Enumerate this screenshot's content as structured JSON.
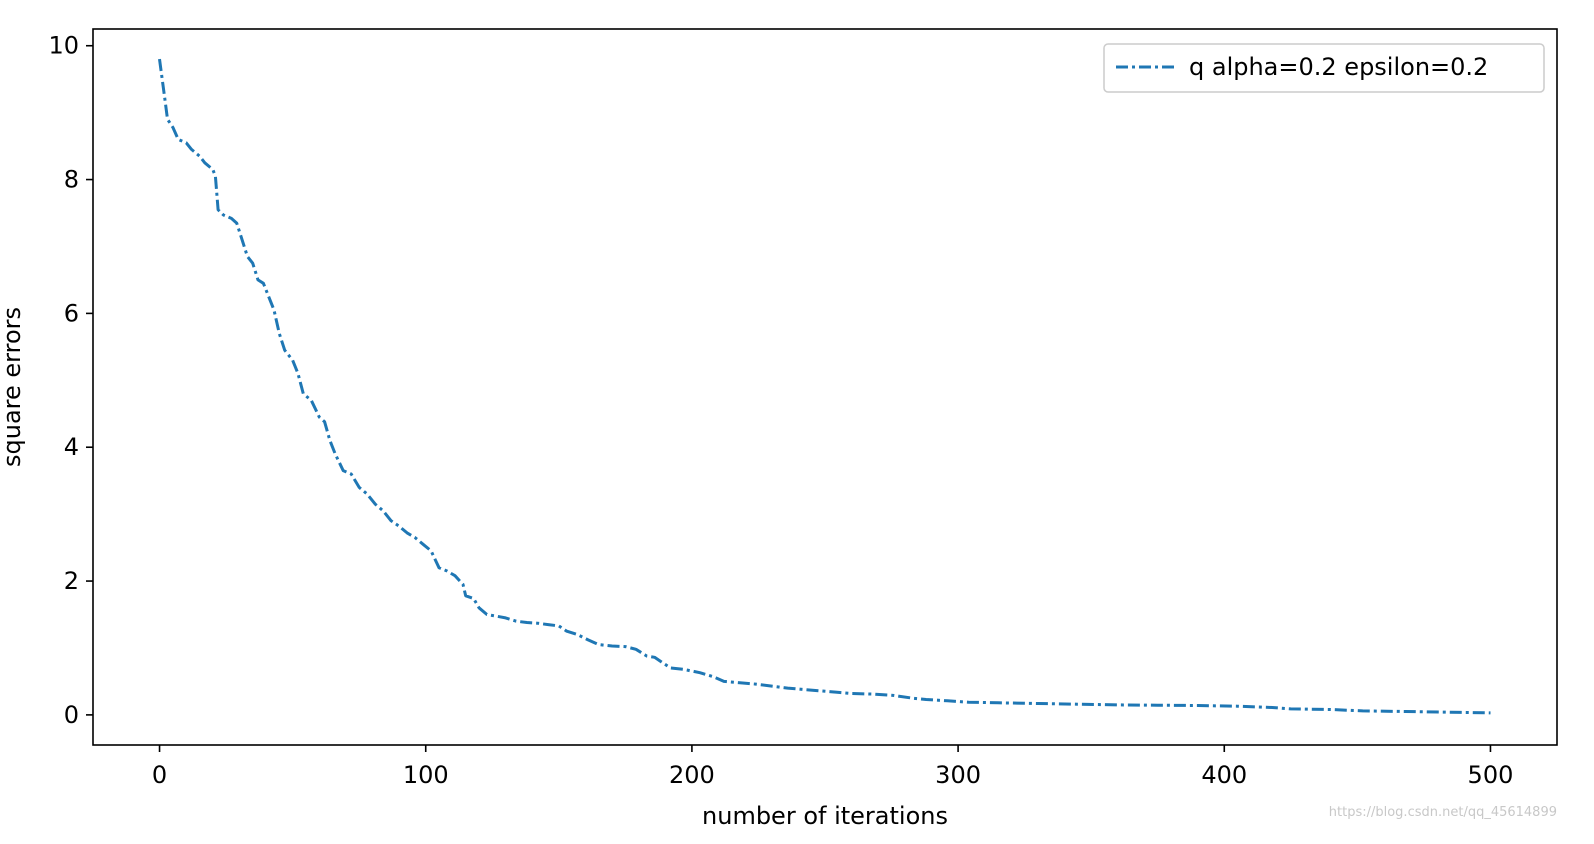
{
  "chart_data": {
    "type": "line",
    "title": "",
    "xlabel": "number of iterations",
    "ylabel": "square errors",
    "xlim": [
      -25,
      525
    ],
    "ylim": [
      -0.45,
      10.25
    ],
    "xticks": [
      0,
      100,
      200,
      300,
      400,
      500
    ],
    "xtick_labels": [
      "0",
      "100",
      "200",
      "300",
      "400",
      "500"
    ],
    "yticks": [
      0,
      2,
      4,
      6,
      8,
      10
    ],
    "ytick_labels": [
      "0",
      "2",
      "4",
      "6",
      "8",
      "10"
    ],
    "grid": false,
    "legend_position": "top-right",
    "series": [
      {
        "name": "q alpha=0.2 epsilon=0.2",
        "color": "#1f77b4",
        "line_style": "dash-dot",
        "points": [
          [
            0,
            9.8
          ],
          [
            2,
            9.2
          ],
          [
            3,
            8.9
          ],
          [
            5,
            8.78
          ],
          [
            7,
            8.6
          ],
          [
            10,
            8.55
          ],
          [
            12,
            8.45
          ],
          [
            15,
            8.35
          ],
          [
            17,
            8.25
          ],
          [
            20,
            8.15
          ],
          [
            21,
            8.05
          ],
          [
            22,
            7.55
          ],
          [
            24,
            7.47
          ],
          [
            27,
            7.42
          ],
          [
            29,
            7.35
          ],
          [
            31,
            7.1
          ],
          [
            33,
            6.85
          ],
          [
            35,
            6.75
          ],
          [
            37,
            6.5
          ],
          [
            39,
            6.45
          ],
          [
            41,
            6.25
          ],
          [
            43,
            6.05
          ],
          [
            45,
            5.7
          ],
          [
            47,
            5.45
          ],
          [
            50,
            5.3
          ],
          [
            52,
            5.1
          ],
          [
            54,
            4.8
          ],
          [
            57,
            4.7
          ],
          [
            60,
            4.45
          ],
          [
            62,
            4.38
          ],
          [
            64,
            4.1
          ],
          [
            66,
            3.9
          ],
          [
            69,
            3.65
          ],
          [
            72,
            3.6
          ],
          [
            75,
            3.4
          ],
          [
            78,
            3.3
          ],
          [
            81,
            3.15
          ],
          [
            84,
            3.05
          ],
          [
            87,
            2.9
          ],
          [
            90,
            2.82
          ],
          [
            93,
            2.72
          ],
          [
            96,
            2.65
          ],
          [
            99,
            2.55
          ],
          [
            102,
            2.45
          ],
          [
            105,
            2.2
          ],
          [
            108,
            2.15
          ],
          [
            111,
            2.08
          ],
          [
            114,
            1.95
          ],
          [
            115,
            1.78
          ],
          [
            118,
            1.74
          ],
          [
            120,
            1.6
          ],
          [
            123,
            1.5
          ],
          [
            126,
            1.48
          ],
          [
            130,
            1.45
          ],
          [
            134,
            1.4
          ],
          [
            138,
            1.38
          ],
          [
            142,
            1.37
          ],
          [
            146,
            1.35
          ],
          [
            150,
            1.33
          ],
          [
            153,
            1.25
          ],
          [
            157,
            1.2
          ],
          [
            161,
            1.12
          ],
          [
            165,
            1.05
          ],
          [
            170,
            1.03
          ],
          [
            175,
            1.02
          ],
          [
            179,
            0.98
          ],
          [
            183,
            0.88
          ],
          [
            186,
            0.86
          ],
          [
            189,
            0.78
          ],
          [
            192,
            0.7
          ],
          [
            197,
            0.68
          ],
          [
            203,
            0.63
          ],
          [
            208,
            0.57
          ],
          [
            212,
            0.5
          ],
          [
            218,
            0.48
          ],
          [
            224,
            0.46
          ],
          [
            230,
            0.43
          ],
          [
            236,
            0.4
          ],
          [
            242,
            0.38
          ],
          [
            248,
            0.36
          ],
          [
            254,
            0.34
          ],
          [
            260,
            0.32
          ],
          [
            268,
            0.31
          ],
          [
            276,
            0.29
          ],
          [
            283,
            0.25
          ],
          [
            288,
            0.23
          ],
          [
            296,
            0.21
          ],
          [
            304,
            0.19
          ],
          [
            315,
            0.18
          ],
          [
            330,
            0.17
          ],
          [
            345,
            0.16
          ],
          [
            360,
            0.15
          ],
          [
            375,
            0.145
          ],
          [
            390,
            0.14
          ],
          [
            405,
            0.13
          ],
          [
            418,
            0.11
          ],
          [
            425,
            0.09
          ],
          [
            440,
            0.08
          ],
          [
            452,
            0.06
          ],
          [
            468,
            0.05
          ],
          [
            485,
            0.04
          ],
          [
            500,
            0.03
          ]
        ]
      }
    ]
  },
  "watermark": "https://blog.csdn.net/qq_45614899"
}
